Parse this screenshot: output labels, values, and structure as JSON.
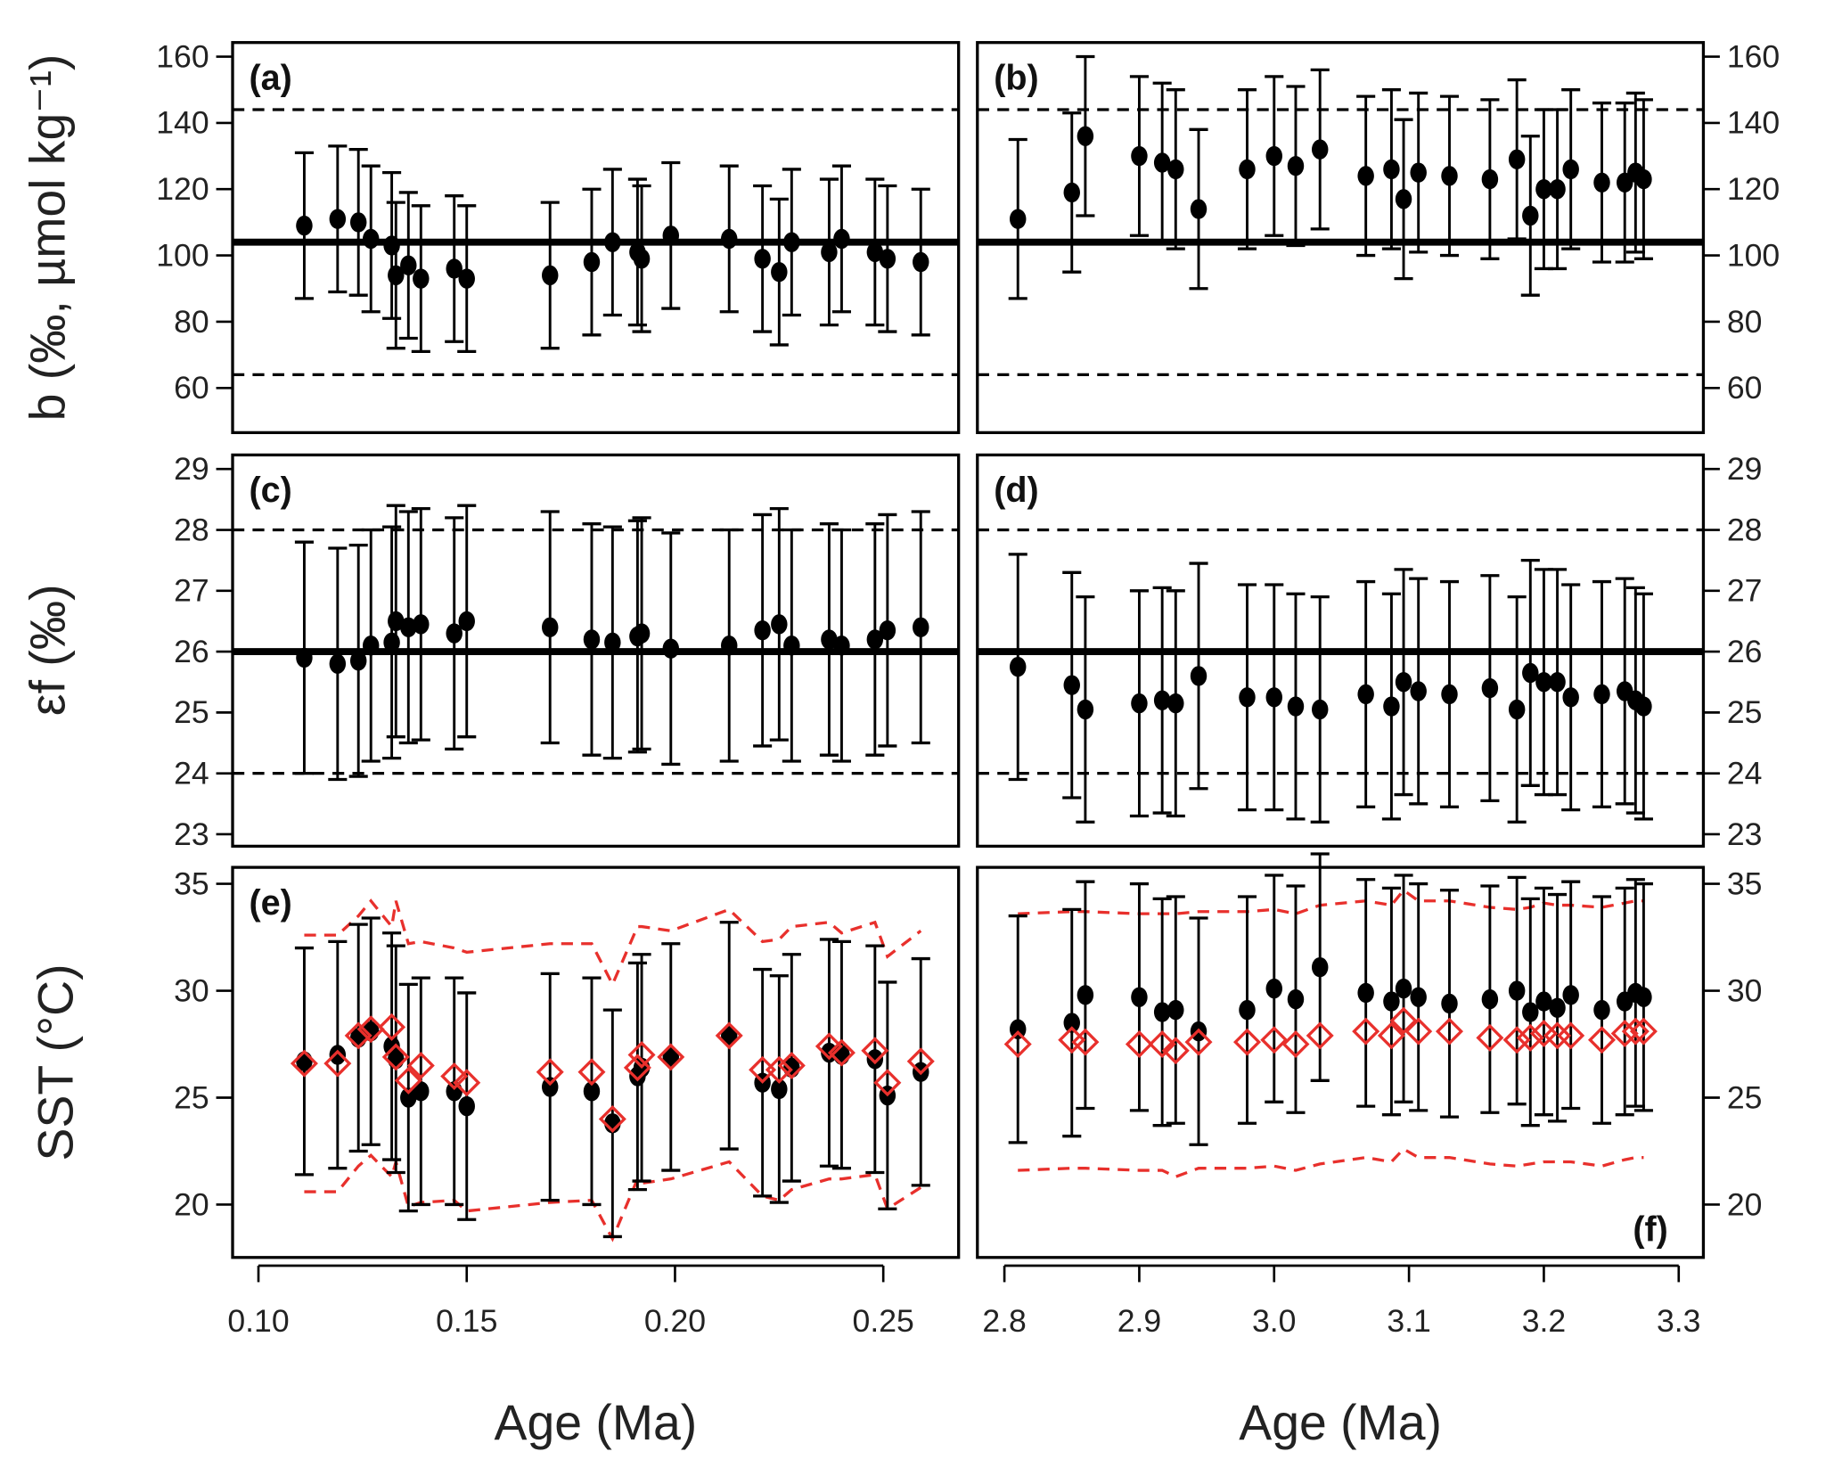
{
  "chart_data": [
    {
      "panel": "(a)",
      "type": "scatter",
      "ylabel": "b (‰, µmol kg⁻¹)",
      "xlabel": "Age (Ma)",
      "xlim": [
        0.09,
        0.265
      ],
      "ylim": [
        45,
        165
      ],
      "xticks": [
        "0.10",
        "0.15",
        "0.20",
        "0.25"
      ],
      "yticks": [
        "60",
        "80",
        "100",
        "120",
        "140",
        "160"
      ],
      "ref_solid": 104,
      "ref_dashed": [
        144,
        64
      ],
      "x": [
        0.111,
        0.119,
        0.124,
        0.127,
        0.132,
        0.133,
        0.136,
        0.139,
        0.147,
        0.15,
        0.17,
        0.18,
        0.185,
        0.191,
        0.192,
        0.199,
        0.213,
        0.221,
        0.225,
        0.228,
        0.237,
        0.24,
        0.248,
        0.251,
        0.259
      ],
      "y": [
        109,
        111,
        110,
        105,
        103,
        94,
        97,
        93,
        96,
        93,
        94,
        98,
        104,
        101,
        99,
        106,
        105,
        99,
        95,
        104,
        101,
        105,
        101,
        99,
        98
      ],
      "err": 22
    },
    {
      "panel": "(b)",
      "type": "scatter",
      "ylabel": "",
      "xlabel": "Age (Ma)",
      "xlim": [
        2.78,
        3.33
      ],
      "ylim": [
        45,
        165
      ],
      "xticks": [
        "2.8",
        "2.9",
        "3.0",
        "3.1",
        "3.2",
        "3.3"
      ],
      "yticks": [
        "60",
        "80",
        "100",
        "120",
        "140",
        "160"
      ],
      "ref_solid": 104,
      "ref_dashed": [
        144,
        64
      ],
      "x": [
        2.81,
        2.85,
        2.86,
        2.9,
        2.917,
        2.927,
        2.944,
        2.98,
        3.0,
        3.016,
        3.034,
        3.068,
        3.087,
        3.096,
        3.107,
        3.13,
        3.16,
        3.18,
        3.19,
        3.2,
        3.21,
        3.22,
        3.243,
        3.26,
        3.268,
        3.274
      ],
      "y": [
        111,
        119,
        136,
        130,
        128,
        126,
        114,
        126,
        130,
        127,
        132,
        124,
        126,
        117,
        125,
        124,
        123,
        129,
        112,
        120,
        120,
        126,
        122,
        122,
        125,
        123
      ],
      "err": 24
    },
    {
      "panel": "(c)",
      "type": "scatter",
      "ylabel": "εf (‰)",
      "ylim": [
        22.8,
        29.3
      ],
      "yticks": [
        "23",
        "24",
        "25",
        "26",
        "27",
        "28",
        "29"
      ],
      "ref_solid": 26,
      "ref_dashed": [
        28,
        24
      ],
      "y": [
        25.9,
        25.8,
        25.85,
        26.1,
        26.15,
        26.5,
        26.4,
        26.45,
        26.3,
        26.5,
        26.4,
        26.2,
        26.15,
        26.25,
        26.3,
        26.05,
        26.1,
        26.35,
        26.45,
        26.1,
        26.2,
        26.1,
        26.2,
        26.35,
        26.4
      ],
      "err": 1.9
    },
    {
      "panel": "(d)",
      "type": "scatter",
      "ylim": [
        22.8,
        29.3
      ],
      "yticks": [
        "23",
        "24",
        "25",
        "26",
        "27",
        "28",
        "29"
      ],
      "ref_solid": 26,
      "ref_dashed": [
        28,
        24
      ],
      "y": [
        25.75,
        25.45,
        25.05,
        25.15,
        25.2,
        25.15,
        25.6,
        25.25,
        25.25,
        25.1,
        25.05,
        25.3,
        25.1,
        25.5,
        25.35,
        25.3,
        25.4,
        25.05,
        25.65,
        25.5,
        25.5,
        25.25,
        25.3,
        25.35,
        25.2,
        25.1
      ],
      "err": 1.85
    },
    {
      "panel": "(e)",
      "type": "scatter",
      "ylabel": "SST (°C)",
      "ylim": [
        17.5,
        36
      ],
      "yticks": [
        "20",
        "25",
        "30",
        "35"
      ],
      "y": [
        26.7,
        27.0,
        27.8,
        28.1,
        27.4,
        26.8,
        25.0,
        25.3,
        25.3,
        24.6,
        25.5,
        25.3,
        23.8,
        26.0,
        26.4,
        26.9,
        27.9,
        25.7,
        25.4,
        26.4,
        27.1,
        27.0,
        26.8,
        25.1,
        26.2
      ],
      "err": 5.3,
      "model": [
        26.6,
        26.6,
        27.9,
        28.2,
        28.3,
        26.9,
        25.8,
        26.5,
        26.0,
        25.7,
        26.2,
        26.2,
        24.0,
        26.4,
        27.0,
        26.9,
        27.9,
        26.3,
        26.3,
        26.5,
        27.4,
        27.1,
        27.2,
        25.7,
        26.7
      ],
      "model_upper": [
        32.6,
        32.6,
        33.5,
        34.2,
        33.0,
        34.2,
        32.2,
        32.3,
        32.0,
        31.8,
        32.2,
        32.2,
        30.3,
        33.0,
        33.0,
        32.8,
        33.8,
        32.3,
        32.4,
        33.0,
        33.2,
        32.7,
        33.2,
        31.6,
        32.8
      ],
      "model_lower": [
        20.6,
        20.6,
        21.8,
        22.3,
        21.3,
        22.0,
        19.9,
        20.1,
        20.2,
        19.7,
        20.1,
        20.2,
        18.4,
        21.2,
        21.0,
        21.2,
        22.0,
        20.4,
        20.2,
        20.7,
        21.2,
        21.2,
        21.4,
        19.8,
        20.8
      ]
    },
    {
      "panel": "(f)",
      "type": "scatter",
      "ylim": [
        17.5,
        36
      ],
      "yticks": [
        "20",
        "25",
        "30",
        "35"
      ],
      "y": [
        28.2,
        28.5,
        29.8,
        29.7,
        29.0,
        29.1,
        28.1,
        29.1,
        30.1,
        29.6,
        31.1,
        29.9,
        29.5,
        30.1,
        29.7,
        29.4,
        29.6,
        30.0,
        29.0,
        29.5,
        29.2,
        29.8,
        29.1,
        29.5,
        29.9,
        29.7
      ],
      "err": 5.3,
      "model": [
        27.5,
        27.7,
        27.6,
        27.5,
        27.5,
        27.2,
        27.6,
        27.6,
        27.7,
        27.5,
        27.9,
        28.1,
        27.9,
        28.6,
        28.1,
        28.1,
        27.8,
        27.7,
        27.8,
        28.0,
        27.9,
        27.9,
        27.7,
        28.0,
        28.1,
        28.1
      ],
      "model_upper": [
        33.6,
        33.7,
        33.7,
        33.6,
        33.6,
        33.6,
        33.7,
        33.7,
        33.8,
        33.6,
        34.0,
        34.2,
        34.0,
        34.7,
        34.2,
        34.2,
        33.9,
        33.8,
        33.9,
        34.1,
        34.0,
        34.0,
        33.9,
        34.1,
        34.2,
        34.2
      ],
      "model_lower": [
        21.6,
        21.7,
        21.7,
        21.6,
        21.6,
        21.3,
        21.7,
        21.7,
        21.8,
        21.6,
        21.9,
        22.2,
        22.0,
        22.6,
        22.2,
        22.2,
        21.9,
        21.8,
        21.9,
        22.0,
        22.0,
        22.0,
        21.8,
        22.1,
        22.2,
        22.2
      ]
    }
  ],
  "labels": {
    "ylabel_b": "b (‰, µmol kg⁻¹)",
    "ylabel_eps": "εf (‰)",
    "ylabel_sst": "SST (°C)",
    "xlabel_left": "Age (Ma)",
    "xlabel_right": "Age (Ma)"
  },
  "colors": {
    "data": "#000000",
    "model": "#e8302c"
  }
}
